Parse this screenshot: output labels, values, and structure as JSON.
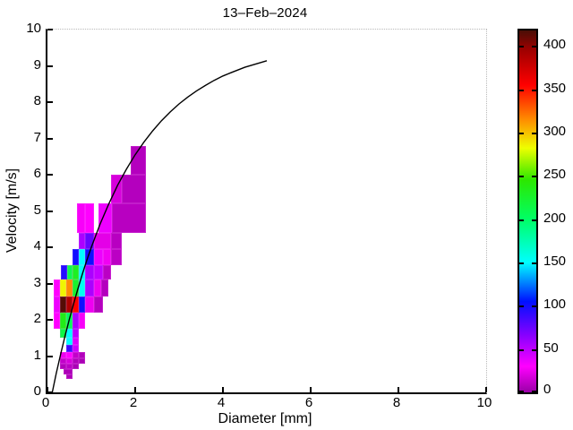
{
  "figure": {
    "background": "#ffffff"
  },
  "chart_data": {
    "type": "heatmap",
    "title": "13–Feb–2024",
    "xlabel": "Diameter [mm]",
    "ylabel": "Velocity [m/s]",
    "xlim": [
      0,
      10
    ],
    "ylim": [
      0,
      10
    ],
    "grid": false,
    "x_ticks": [
      0,
      2,
      4,
      6,
      8,
      10
    ],
    "y_ticks": [
      0,
      1,
      2,
      3,
      4,
      5,
      6,
      7,
      8,
      9,
      10
    ],
    "colorbar": {
      "min": 0,
      "max": 418,
      "ticks": [
        0,
        50,
        100,
        150,
        200,
        250,
        300,
        350,
        400
      ],
      "stops": [
        [
          0,
          [
            153,
            0,
            166
          ]
        ],
        [
          30,
          [
            255,
            0,
            255
          ]
        ],
        [
          65,
          [
            138,
            0,
            255
          ]
        ],
        [
          105,
          [
            0,
            16,
            255
          ]
        ],
        [
          150,
          [
            0,
            255,
            255
          ]
        ],
        [
          200,
          [
            0,
            255,
            102
          ]
        ],
        [
          245,
          [
            43,
            232,
            0
          ]
        ],
        [
          282,
          [
            238,
            255,
            0
          ]
        ],
        [
          315,
          [
            255,
            140,
            0
          ]
        ],
        [
          355,
          [
            255,
            0,
            0
          ]
        ],
        [
          395,
          [
            160,
            0,
            0
          ]
        ],
        [
          418,
          [
            74,
            14,
            6
          ]
        ]
      ]
    },
    "cells": [
      [
        1.9,
        2.25,
        6.0,
        6.8,
        8
      ],
      [
        1.45,
        1.7,
        5.2,
        6.0,
        18
      ],
      [
        1.7,
        2.25,
        5.2,
        6.0,
        8
      ],
      [
        0.68,
        0.86,
        4.4,
        5.2,
        28
      ],
      [
        0.86,
        1.06,
        4.4,
        5.2,
        30
      ],
      [
        1.16,
        1.47,
        4.4,
        5.2,
        35
      ],
      [
        1.47,
        2.25,
        4.4,
        5.2,
        9
      ],
      [
        0.72,
        0.86,
        3.95,
        4.4,
        55
      ],
      [
        0.86,
        1.06,
        3.95,
        4.4,
        75
      ],
      [
        1.06,
        1.45,
        3.95,
        4.4,
        22
      ],
      [
        1.45,
        1.7,
        3.95,
        4.4,
        9
      ],
      [
        0.58,
        0.72,
        3.5,
        3.95,
        100
      ],
      [
        0.72,
        0.86,
        3.5,
        3.95,
        150
      ],
      [
        0.86,
        1.06,
        3.5,
        3.95,
        100
      ],
      [
        1.06,
        1.27,
        3.5,
        3.95,
        35
      ],
      [
        1.27,
        1.45,
        3.5,
        3.95,
        26
      ],
      [
        1.45,
        1.7,
        3.5,
        3.95,
        10
      ],
      [
        0.3,
        0.44,
        3.1,
        3.5,
        95
      ],
      [
        0.44,
        0.58,
        3.1,
        3.5,
        210
      ],
      [
        0.58,
        0.72,
        3.1,
        3.5,
        230
      ],
      [
        0.72,
        0.86,
        3.1,
        3.5,
        150
      ],
      [
        0.86,
        1.06,
        3.1,
        3.5,
        55
      ],
      [
        1.06,
        1.27,
        3.1,
        3.5,
        48
      ],
      [
        1.27,
        1.45,
        3.1,
        3.5,
        10
      ],
      [
        0.14,
        0.29,
        2.65,
        3.1,
        30
      ],
      [
        0.29,
        0.43,
        2.65,
        3.1,
        285
      ],
      [
        0.43,
        0.57,
        2.65,
        3.1,
        315
      ],
      [
        0.57,
        0.71,
        2.65,
        3.1,
        225
      ],
      [
        0.71,
        0.86,
        2.65,
        3.1,
        155
      ],
      [
        0.86,
        1.06,
        2.65,
        3.1,
        55
      ],
      [
        1.06,
        1.22,
        2.65,
        3.1,
        25
      ],
      [
        1.22,
        1.38,
        2.65,
        3.1,
        8
      ],
      [
        0.14,
        0.29,
        2.2,
        2.65,
        35
      ],
      [
        0.29,
        0.43,
        2.2,
        2.65,
        415
      ],
      [
        0.43,
        0.57,
        2.2,
        2.65,
        390
      ],
      [
        0.57,
        0.71,
        2.2,
        2.65,
        355
      ],
      [
        0.71,
        0.86,
        2.2,
        2.65,
        100
      ],
      [
        0.86,
        1.06,
        2.2,
        2.65,
        25
      ],
      [
        1.06,
        1.27,
        2.2,
        2.65,
        8
      ],
      [
        0.14,
        0.29,
        1.75,
        2.2,
        30
      ],
      [
        0.29,
        0.43,
        1.75,
        2.2,
        235
      ],
      [
        0.43,
        0.57,
        1.75,
        2.2,
        205
      ],
      [
        0.57,
        0.71,
        1.75,
        2.2,
        55
      ],
      [
        0.71,
        0.86,
        1.75,
        2.2,
        28
      ],
      [
        0.29,
        0.43,
        1.5,
        1.75,
        215
      ],
      [
        0.43,
        0.57,
        1.5,
        1.75,
        150
      ],
      [
        0.57,
        0.71,
        1.5,
        1.75,
        50
      ],
      [
        0.43,
        0.57,
        1.3,
        1.5,
        150
      ],
      [
        0.57,
        0.71,
        1.3,
        1.5,
        40
      ],
      [
        0.43,
        0.57,
        1.1,
        1.3,
        88
      ],
      [
        0.57,
        0.71,
        1.1,
        1.3,
        45
      ],
      [
        0.29,
        0.43,
        0.95,
        1.1,
        25
      ],
      [
        0.43,
        0.57,
        0.95,
        1.1,
        30
      ],
      [
        0.57,
        0.71,
        0.95,
        1.1,
        12
      ],
      [
        0.71,
        0.86,
        0.95,
        1.1,
        7
      ],
      [
        0.29,
        0.43,
        0.8,
        0.95,
        12
      ],
      [
        0.43,
        0.57,
        0.8,
        0.95,
        18
      ],
      [
        0.57,
        0.71,
        0.8,
        0.95,
        7
      ],
      [
        0.71,
        0.86,
        0.8,
        0.95,
        5
      ],
      [
        0.29,
        0.43,
        0.65,
        0.8,
        7
      ],
      [
        0.43,
        0.57,
        0.65,
        0.8,
        10
      ],
      [
        0.57,
        0.71,
        0.65,
        0.8,
        5
      ],
      [
        0.36,
        0.57,
        0.5,
        0.65,
        6
      ],
      [
        0.43,
        0.57,
        0.38,
        0.5,
        6
      ]
    ],
    "curve": {
      "color": "#000000",
      "points": [
        [
          0.11,
          0.0
        ],
        [
          0.2,
          0.52
        ],
        [
          0.3,
          1.05
        ],
        [
          0.4,
          1.55
        ],
        [
          0.5,
          2.02
        ],
        [
          0.6,
          2.46
        ],
        [
          0.7,
          2.88
        ],
        [
          0.8,
          3.28
        ],
        [
          0.9,
          3.65
        ],
        [
          1.0,
          4.0
        ],
        [
          1.2,
          4.64
        ],
        [
          1.4,
          5.2
        ],
        [
          1.6,
          5.71
        ],
        [
          1.8,
          6.15
        ],
        [
          2.0,
          6.55
        ],
        [
          2.2,
          6.9
        ],
        [
          2.4,
          7.21
        ],
        [
          2.6,
          7.49
        ],
        [
          2.8,
          7.73
        ],
        [
          3.0,
          7.95
        ],
        [
          3.2,
          8.14
        ],
        [
          3.4,
          8.31
        ],
        [
          3.6,
          8.46
        ],
        [
          3.8,
          8.6
        ],
        [
          4.0,
          8.72
        ],
        [
          4.2,
          8.82
        ],
        [
          4.5,
          8.96
        ],
        [
          5.0,
          9.14
        ]
      ]
    }
  }
}
